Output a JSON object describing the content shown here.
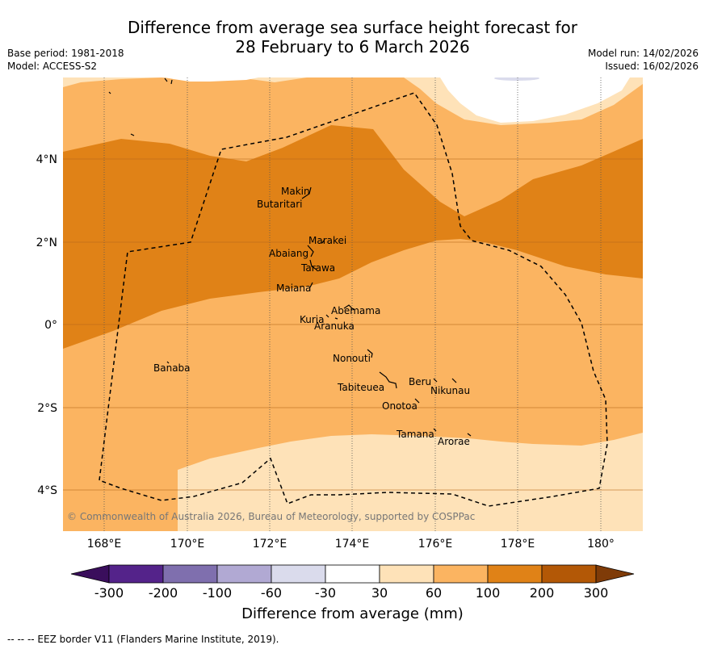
{
  "title": {
    "line1": "Difference from average sea surface height forecast for",
    "line2": "28 February to 6 March 2026"
  },
  "meta_left": {
    "base_period": "Base period: 1981-2018",
    "model": "Model: ACCESS-S2"
  },
  "meta_right": {
    "model_run": "Model run: 14/02/2026",
    "issued": "Issued: 16/02/2026"
  },
  "map": {
    "lat_labels": [
      "4°N",
      "2°N",
      "0°",
      "2°S",
      "4°S"
    ],
    "lon_labels": [
      "168°E",
      "170°E",
      "172°E",
      "174°E",
      "176°E",
      "178°E",
      "180°"
    ],
    "places": {
      "makin": "Makin",
      "butaritari": "Butaritari",
      "marakei": "Marakei",
      "abaiang": "Abaiang",
      "tarawa": "Tarawa",
      "maiana": "Maiana",
      "abemama": "Abemama",
      "kuria": "Kuria",
      "aranuka": "Aranuka",
      "nonouti": "Nonouti",
      "banaba": "Banaba",
      "beru": "Beru",
      "nikunau": "Nikunau",
      "tabiteuea": "Tabiteuea",
      "onotoa": "Onotoa",
      "tamana": "Tamana",
      "arorae": "Arorae"
    },
    "copyright": "© Commonwealth of Australia 2026, Bureau of Meteorology, supported by COSPPac"
  },
  "colorbar": {
    "colors": {
      "lt_neg300": "#3a0e5c",
      "neg300_neg200": "#54238a",
      "neg200_neg100": "#7f6fae",
      "neg100_neg60": "#b1a9d3",
      "neg60_neg30": "#dadbec",
      "neg30_30": "#ffffff",
      "c30_60": "#fee2b8",
      "c60_100": "#fbb461",
      "c100_200": "#e08217",
      "c200_300": "#b35806",
      "gt_300": "#7f3b08"
    },
    "labels": [
      "-300",
      "-200",
      "-100",
      "-60",
      "-30",
      "30",
      "60",
      "100",
      "200",
      "300"
    ],
    "title": "Difference from average (mm)"
  },
  "footer": "--  --  -- EEZ border V11 (Flanders Marine Institute, 2019)."
}
